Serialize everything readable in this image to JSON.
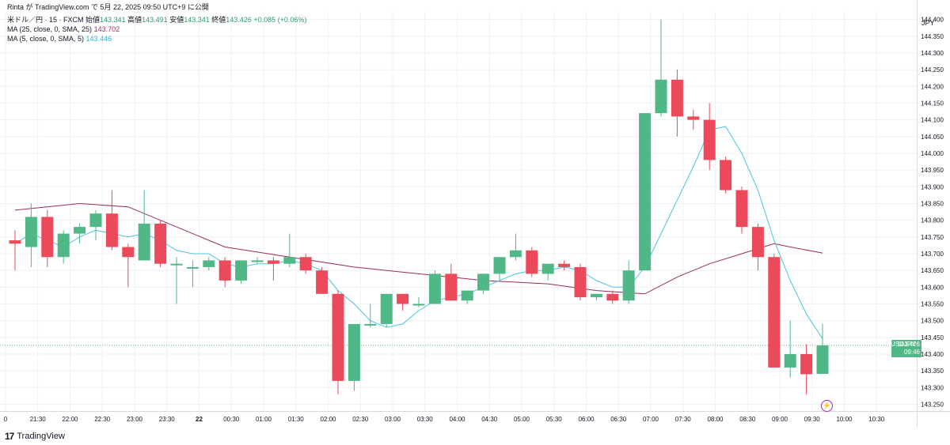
{
  "header": {
    "credit": "Rinta が TradingView.com で 5月 22, 2025 09:50 UTC+9 に公開",
    "symbol": "米ドル／円 · 15 · FXCM",
    "open_label": "始値",
    "open_value": "143.341",
    "high_label": "高値",
    "high_value": "143.491",
    "low_label": "安値",
    "low_value": "143.341",
    "close_label": "終値",
    "close_value": "143.426",
    "change": "+0.085 (+0.06%)"
  },
  "indicators": {
    "ma25_label": "MA (25, close, 0, SMA, 25)",
    "ma25_value": "143.702",
    "ma5_label": "MA (5, close, 0, SMA, 5)",
    "ma5_value": "143.446"
  },
  "currency": "JPY",
  "price_tag": {
    "symbol": "USDJPY",
    "price": "143.426",
    "countdown": "09:46"
  },
  "branding": {
    "logo_text": "TradingView",
    "logo_mark": "17"
  },
  "colors": {
    "up": "#4fb886",
    "down": "#ec4a5a",
    "ma25": "#9b2b5e",
    "ma5": "#4ac4df",
    "grid": "#eef1f6",
    "price_line": "#4fb886"
  },
  "chart_data": {
    "type": "candlestick",
    "x_tick_labels": [
      "0",
      "21:30",
      "22:00",
      "22:30",
      "23:00",
      "23:30",
      "22",
      "00:30",
      "01:00",
      "01:30",
      "02:00",
      "02:30",
      "03:00",
      "03:30",
      "04:00",
      "04:30",
      "05:00",
      "05:30",
      "06:00",
      "06:30",
      "07:00",
      "07:30",
      "08:00",
      "08:30",
      "09:00",
      "09:30",
      "10:00",
      "10:30"
    ],
    "y_tick_labels": [
      "144.400",
      "144.350",
      "144.300",
      "144.250",
      "144.200",
      "144.150",
      "144.100",
      "144.050",
      "144.000",
      "143.950",
      "143.900",
      "143.850",
      "143.800",
      "143.750",
      "143.700",
      "143.650",
      "143.600",
      "143.550",
      "143.500",
      "143.450",
      "143.400",
      "143.350",
      "143.300",
      "143.250"
    ],
    "ylim": [
      143.23,
      144.425
    ],
    "grid": true,
    "current_price": 143.426,
    "candles": [
      {
        "time": "21:00",
        "open": 143.74,
        "high": 143.77,
        "low": 143.65,
        "close": 143.73
      },
      {
        "time": "21:15",
        "open": 143.72,
        "high": 143.85,
        "low": 143.66,
        "close": 143.81
      },
      {
        "time": "21:30",
        "open": 143.81,
        "high": 143.83,
        "low": 143.66,
        "close": 143.69
      },
      {
        "time": "21:45",
        "open": 143.69,
        "high": 143.77,
        "low": 143.67,
        "close": 143.76
      },
      {
        "time": "22:00",
        "open": 143.76,
        "high": 143.79,
        "low": 143.73,
        "close": 143.78
      },
      {
        "time": "22:15",
        "open": 143.78,
        "high": 143.83,
        "low": 143.74,
        "close": 143.82
      },
      {
        "time": "22:30",
        "open": 143.82,
        "high": 143.89,
        "low": 143.71,
        "close": 143.72
      },
      {
        "time": "22:45",
        "open": 143.72,
        "high": 143.73,
        "low": 143.6,
        "close": 143.69
      },
      {
        "time": "23:00",
        "open": 143.68,
        "high": 143.89,
        "low": 143.68,
        "close": 143.79
      },
      {
        "time": "23:15",
        "open": 143.79,
        "high": 143.8,
        "low": 143.66,
        "close": 143.67
      },
      {
        "time": "23:30",
        "open": 143.67,
        "high": 143.69,
        "low": 143.55,
        "close": 143.67
      },
      {
        "time": "23:45",
        "open": 143.66,
        "high": 143.68,
        "low": 143.6,
        "close": 143.66
      },
      {
        "time": "00:00",
        "open": 143.66,
        "high": 143.69,
        "low": 143.65,
        "close": 143.68
      },
      {
        "time": "00:15",
        "open": 143.68,
        "high": 143.69,
        "low": 143.6,
        "close": 143.62
      },
      {
        "time": "00:30",
        "open": 143.62,
        "high": 143.68,
        "low": 143.61,
        "close": 143.68
      },
      {
        "time": "00:45",
        "open": 143.68,
        "high": 143.69,
        "low": 143.67,
        "close": 143.68
      },
      {
        "time": "01:00",
        "open": 143.68,
        "high": 143.69,
        "low": 143.62,
        "close": 143.67
      },
      {
        "time": "01:15",
        "open": 143.67,
        "high": 143.76,
        "low": 143.66,
        "close": 143.69
      },
      {
        "time": "01:30",
        "open": 143.69,
        "high": 143.7,
        "low": 143.64,
        "close": 143.65
      },
      {
        "time": "01:45",
        "open": 143.65,
        "high": 143.66,
        "low": 143.58,
        "close": 143.58
      },
      {
        "time": "02:00",
        "open": 143.58,
        "high": 143.59,
        "low": 143.28,
        "close": 143.32
      },
      {
        "time": "02:15",
        "open": 143.32,
        "high": 143.49,
        "low": 143.29,
        "close": 143.49
      },
      {
        "time": "02:30",
        "open": 143.49,
        "high": 143.55,
        "low": 143.48,
        "close": 143.49
      },
      {
        "time": "02:45",
        "open": 143.49,
        "high": 143.58,
        "low": 143.48,
        "close": 143.58
      },
      {
        "time": "03:00",
        "open": 143.58,
        "high": 143.58,
        "low": 143.53,
        "close": 143.55
      },
      {
        "time": "03:15",
        "open": 143.55,
        "high": 143.57,
        "low": 143.54,
        "close": 143.55
      },
      {
        "time": "03:30",
        "open": 143.55,
        "high": 143.65,
        "low": 143.55,
        "close": 143.64
      },
      {
        "time": "03:45",
        "open": 143.64,
        "high": 143.67,
        "low": 143.56,
        "close": 143.56
      },
      {
        "time": "04:00",
        "open": 143.56,
        "high": 143.59,
        "low": 143.55,
        "close": 143.59
      },
      {
        "time": "04:15",
        "open": 143.59,
        "high": 143.64,
        "low": 143.58,
        "close": 143.64
      },
      {
        "time": "04:30",
        "open": 143.64,
        "high": 143.69,
        "low": 143.62,
        "close": 143.69
      },
      {
        "time": "04:45",
        "open": 143.69,
        "high": 143.76,
        "low": 143.68,
        "close": 143.71
      },
      {
        "time": "05:00",
        "open": 143.71,
        "high": 143.72,
        "low": 143.63,
        "close": 143.64
      },
      {
        "time": "05:15",
        "open": 143.64,
        "high": 143.67,
        "low": 143.62,
        "close": 143.67
      },
      {
        "time": "05:30",
        "open": 143.67,
        "high": 143.68,
        "low": 143.65,
        "close": 143.66
      },
      {
        "time": "05:45",
        "open": 143.66,
        "high": 143.67,
        "low": 143.56,
        "close": 143.57
      },
      {
        "time": "06:00",
        "open": 143.57,
        "high": 143.58,
        "low": 143.56,
        "close": 143.58
      },
      {
        "time": "06:15",
        "open": 143.58,
        "high": 143.59,
        "low": 143.55,
        "close": 143.56
      },
      {
        "time": "06:30",
        "open": 143.56,
        "high": 143.68,
        "low": 143.55,
        "close": 143.65
      },
      {
        "time": "06:45",
        "open": 143.65,
        "high": 144.12,
        "low": 143.65,
        "close": 144.12
      },
      {
        "time": "07:00",
        "open": 144.12,
        "high": 144.4,
        "low": 144.11,
        "close": 144.22
      },
      {
        "time": "07:15",
        "open": 144.22,
        "high": 144.25,
        "low": 144.05,
        "close": 144.11
      },
      {
        "time": "07:30",
        "open": 144.11,
        "high": 144.13,
        "low": 144.07,
        "close": 144.1
      },
      {
        "time": "07:45",
        "open": 144.1,
        "high": 144.15,
        "low": 143.95,
        "close": 143.98
      },
      {
        "time": "08:00",
        "open": 143.98,
        "high": 143.99,
        "low": 143.88,
        "close": 143.89
      },
      {
        "time": "08:15",
        "open": 143.89,
        "high": 143.9,
        "low": 143.76,
        "close": 143.78
      },
      {
        "time": "08:30",
        "open": 143.78,
        "high": 143.79,
        "low": 143.65,
        "close": 143.69
      },
      {
        "time": "08:45",
        "open": 143.69,
        "high": 143.7,
        "low": 143.36,
        "close": 143.36
      },
      {
        "time": "09:00",
        "open": 143.36,
        "high": 143.5,
        "low": 143.33,
        "close": 143.4
      },
      {
        "time": "09:15",
        "open": 143.4,
        "high": 143.43,
        "low": 143.28,
        "close": 143.34
      },
      {
        "time": "09:30",
        "open": 143.341,
        "high": 143.491,
        "low": 143.341,
        "close": 143.426
      }
    ],
    "ma25": [
      {
        "time": "21:00",
        "value": 143.83
      },
      {
        "time": "22:00",
        "value": 143.85
      },
      {
        "time": "22:45",
        "value": 143.84
      },
      {
        "time": "23:30",
        "value": 143.78
      },
      {
        "time": "00:15",
        "value": 143.72
      },
      {
        "time": "01:15",
        "value": 143.69
      },
      {
        "time": "02:15",
        "value": 143.66
      },
      {
        "time": "03:15",
        "value": 143.64
      },
      {
        "time": "04:15",
        "value": 143.62
      },
      {
        "time": "05:15",
        "value": 143.61
      },
      {
        "time": "06:00",
        "value": 143.59
      },
      {
        "time": "06:45",
        "value": 143.58
      },
      {
        "time": "07:15",
        "value": 143.63
      },
      {
        "time": "07:45",
        "value": 143.67
      },
      {
        "time": "08:15",
        "value": 143.7
      },
      {
        "time": "08:45",
        "value": 143.73
      },
      {
        "time": "09:00",
        "value": 143.72
      },
      {
        "time": "09:30",
        "value": 143.702
      }
    ],
    "ma5": [
      {
        "time": "21:00",
        "value": 143.73
      },
      {
        "time": "21:15",
        "value": 143.76
      },
      {
        "time": "21:30",
        "value": 143.74
      },
      {
        "time": "21:45",
        "value": 143.72
      },
      {
        "time": "22:00",
        "value": 143.75
      },
      {
        "time": "22:15",
        "value": 143.77
      },
      {
        "time": "22:30",
        "value": 143.76
      },
      {
        "time": "22:45",
        "value": 143.75
      },
      {
        "time": "23:00",
        "value": 143.76
      },
      {
        "time": "23:15",
        "value": 143.74
      },
      {
        "time": "23:30",
        "value": 143.71
      },
      {
        "time": "23:45",
        "value": 143.7
      },
      {
        "time": "00:00",
        "value": 143.7
      },
      {
        "time": "00:15",
        "value": 143.67
      },
      {
        "time": "00:30",
        "value": 143.66
      },
      {
        "time": "00:45",
        "value": 143.67
      },
      {
        "time": "01:00",
        "value": 143.67
      },
      {
        "time": "01:15",
        "value": 143.68
      },
      {
        "time": "01:30",
        "value": 143.67
      },
      {
        "time": "01:45",
        "value": 143.65
      },
      {
        "time": "02:00",
        "value": 143.59
      },
      {
        "time": "02:15",
        "value": 143.55
      },
      {
        "time": "02:30",
        "value": 143.5
      },
      {
        "time": "02:45",
        "value": 143.48
      },
      {
        "time": "03:00",
        "value": 143.49
      },
      {
        "time": "03:15",
        "value": 143.53
      },
      {
        "time": "03:30",
        "value": 143.56
      },
      {
        "time": "03:45",
        "value": 143.57
      },
      {
        "time": "04:00",
        "value": 143.58
      },
      {
        "time": "04:15",
        "value": 143.6
      },
      {
        "time": "04:30",
        "value": 143.62
      },
      {
        "time": "04:45",
        "value": 143.64
      },
      {
        "time": "05:00",
        "value": 143.65
      },
      {
        "time": "05:15",
        "value": 143.65
      },
      {
        "time": "05:30",
        "value": 143.66
      },
      {
        "time": "05:45",
        "value": 143.65
      },
      {
        "time": "06:00",
        "value": 143.62
      },
      {
        "time": "06:15",
        "value": 143.6
      },
      {
        "time": "06:30",
        "value": 143.6
      },
      {
        "time": "06:45",
        "value": 143.66
      },
      {
        "time": "07:00",
        "value": 143.76
      },
      {
        "time": "07:15",
        "value": 143.86
      },
      {
        "time": "07:30",
        "value": 143.96
      },
      {
        "time": "07:45",
        "value": 144.07
      },
      {
        "time": "08:00",
        "value": 144.08
      },
      {
        "time": "08:15",
        "value": 144.0
      },
      {
        "time": "08:30",
        "value": 143.89
      },
      {
        "time": "08:45",
        "value": 143.74
      },
      {
        "time": "09:00",
        "value": 143.62
      },
      {
        "time": "09:15",
        "value": 143.52
      },
      {
        "time": "09:30",
        "value": 143.446
      }
    ]
  }
}
